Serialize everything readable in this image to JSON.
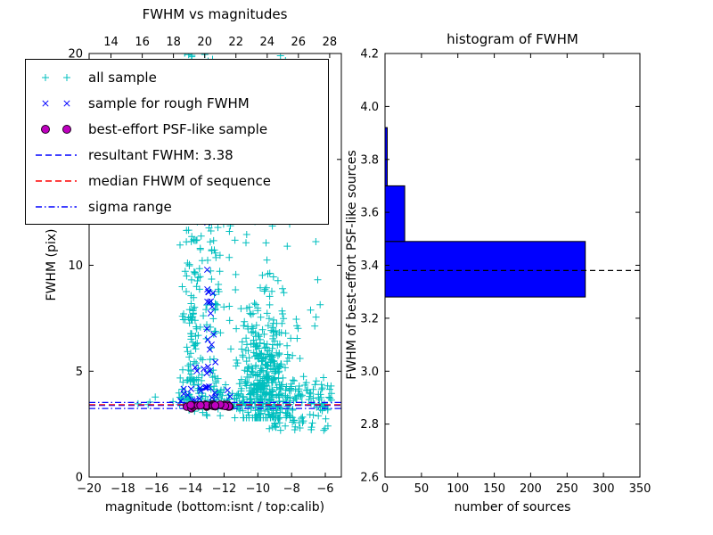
{
  "chart_data": [
    {
      "id": "fwhm_vs_magnitudes",
      "type": "scatter",
      "title": "FWHM vs magnitudes",
      "xlabel": "magnitude (bottom:isnt / top:calib)",
      "ylabel": "FWHM (pix)",
      "xlim_bottom": [
        -20,
        -5.05
      ],
      "xlim_top": [
        12.6,
        28.75
      ],
      "ylim": [
        0,
        20
      ],
      "xticks_bottom": {
        "values": [
          -20,
          -18,
          -16,
          -14,
          -12,
          -10,
          -8,
          -6
        ],
        "labels": [
          "−20",
          "−18",
          "−16",
          "−14",
          "−12",
          "−10",
          "−8",
          "−6"
        ]
      },
      "xticks_top": {
        "values": [
          14,
          16,
          18,
          20,
          22,
          24,
          26,
          28
        ],
        "labels": [
          "14",
          "16",
          "18",
          "20",
          "22",
          "24",
          "26",
          "28"
        ]
      },
      "yticks": {
        "values": [
          0,
          5,
          10,
          15,
          20
        ],
        "labels": [
          "0",
          "5",
          "10",
          "15",
          "20"
        ]
      },
      "series": [
        {
          "name": "all sample",
          "marker": "plus",
          "color": "#00bfbf",
          "clusters": [
            {
              "n": 110,
              "x": {
                "t": "u",
                "a": -14.5,
                "b": -13.3
              },
              "y": {
                "t": "u",
                "a": 3.5,
                "b": 20.3
              }
            },
            {
              "n": 60,
              "x": {
                "t": "n",
                "m": -13.9,
                "s": 0.25
              },
              "y": {
                "t": "u",
                "a": 3.5,
                "b": 13
              }
            },
            {
              "n": 50,
              "x": {
                "t": "u",
                "a": -13.1,
                "b": -12.2
              },
              "y": {
                "t": "u",
                "a": 3.8,
                "b": 12.5
              }
            },
            {
              "n": 320,
              "x": {
                "t": "n",
                "m": -9.7,
                "s": 0.75,
                "lo": -11.6,
                "hi": -7.5
              },
              "y": {
                "t": "n",
                "m": 5.0,
                "s": 1.6,
                "lo": 2.8,
                "hi": 12.5
              }
            },
            {
              "n": 240,
              "x": {
                "t": "u",
                "a": -14.8,
                "b": -5.6
              },
              "y": {
                "t": "n",
                "m": 3.85,
                "s": 0.45,
                "lo": 2.9,
                "hi": 5.2
              }
            },
            {
              "n": 70,
              "x": {
                "t": "u",
                "a": -12.3,
                "b": -6.0
              },
              "y": {
                "t": "u",
                "a": 6,
                "b": 16.5
              }
            },
            {
              "n": 22,
              "x": {
                "t": "u",
                "a": -14.4,
                "b": -12.4
              },
              "y": {
                "t": "u",
                "a": 16.5,
                "b": 20.3
              }
            },
            {
              "n": 6,
              "x": {
                "t": "u",
                "a": -9.0,
                "b": -8.3
              },
              "y": {
                "t": "u",
                "a": 19,
                "b": 20.3
              }
            },
            {
              "n": 45,
              "x": {
                "t": "u",
                "a": -9.6,
                "b": -5.6
              },
              "y": {
                "t": "u",
                "a": 2.2,
                "b": 3.2
              }
            },
            {
              "n": 5,
              "x": {
                "t": "u",
                "a": -17.5,
                "b": -15.0
              },
              "y": {
                "t": "n",
                "m": 3.6,
                "s": 0.25
              }
            }
          ]
        },
        {
          "name": "sample for rough FWHM",
          "marker": "x",
          "color": "#0000ff",
          "clusters": [
            {
              "n": 16,
              "x": {
                "t": "u",
                "a": -13.0,
                "b": -12.4
              },
              "y": {
                "t": "u",
                "a": 4.3,
                "b": 12.2
              }
            },
            {
              "n": 10,
              "x": {
                "t": "u",
                "a": -14.1,
                "b": -12.3
              },
              "y": {
                "t": "n",
                "m": 5.5,
                "s": 1.2,
                "lo": 4.2,
                "hi": 9
              }
            },
            {
              "n": 20,
              "x": {
                "t": "u",
                "a": -14.6,
                "b": -11.6
              },
              "y": {
                "t": "n",
                "m": 3.75,
                "s": 0.3,
                "lo": 3.35,
                "hi": 4.4
              }
            }
          ]
        },
        {
          "name": "best-effort PSF-like sample",
          "marker": "circle",
          "color": "#bf00bf",
          "edge": "#1a001a",
          "clusters": [
            {
              "n": 30,
              "x": {
                "t": "u",
                "a": -14.35,
                "b": -11.65
              },
              "y": {
                "t": "n",
                "m": 3.38,
                "s": 0.045
              }
            }
          ]
        }
      ],
      "lines": [
        {
          "name": "resultant-fwhm-line",
          "label": "resultant FWHM: 3.38",
          "value": 3.38,
          "color": "#0000ff",
          "style": "dashed"
        },
        {
          "name": "median-fwhm-line",
          "label": "median FHWM of sequence",
          "value": 3.42,
          "color": "#ff0000",
          "style": "dashed"
        },
        {
          "name": "sigma-range-lines",
          "label": "sigma range",
          "values": [
            3.24,
            3.52
          ],
          "color": "#0000ff",
          "style": "dashdot"
        }
      ]
    },
    {
      "id": "fwhm_histogram",
      "type": "bar",
      "orientation": "horizontal",
      "title": "histogram of FWHM",
      "xlabel": "number of sources",
      "ylabel": "FWHM of best-effort PSF-like sources",
      "xlim": [
        0,
        350
      ],
      "ylim": [
        2.6,
        4.2
      ],
      "xticks": {
        "values": [
          0,
          50,
          100,
          150,
          200,
          250,
          300,
          350
        ],
        "labels": [
          "0",
          "50",
          "100",
          "150",
          "200",
          "250",
          "300",
          "350"
        ]
      },
      "yticks": {
        "values": [
          2.6,
          2.8,
          3.0,
          3.2,
          3.4,
          3.6,
          3.8,
          4.0,
          4.2
        ],
        "labels": [
          "2.6",
          "2.8",
          "3.0",
          "3.2",
          "3.4",
          "3.6",
          "3.8",
          "4.0",
          "4.2"
        ]
      },
      "bin_edges": [
        3.28,
        3.49,
        3.7,
        3.92
      ],
      "values": [
        275,
        27,
        3
      ],
      "bar_color": "#0000ff",
      "bar_edge": "#000000",
      "dashed_line": {
        "value": 3.38,
        "color": "#000000",
        "style": "dashed"
      }
    }
  ],
  "legend": {
    "items": [
      {
        "label": "all sample",
        "marker": "plus",
        "color": "#00bfbf"
      },
      {
        "label": "sample for rough FWHM",
        "marker": "x",
        "color": "#0000ff"
      },
      {
        "label": "best-effort PSF-like sample",
        "marker": "circle",
        "color": "#bf00bf",
        "edge": "#1a001a"
      },
      {
        "label": "resultant FWHM: 3.38",
        "marker": "dashed-line",
        "color": "#0000ff"
      },
      {
        "label": "median FHWM of sequence",
        "marker": "dashed-line",
        "color": "#ff0000"
      },
      {
        "label": "sigma range",
        "marker": "dashdot-line",
        "color": "#0000ff"
      }
    ]
  }
}
